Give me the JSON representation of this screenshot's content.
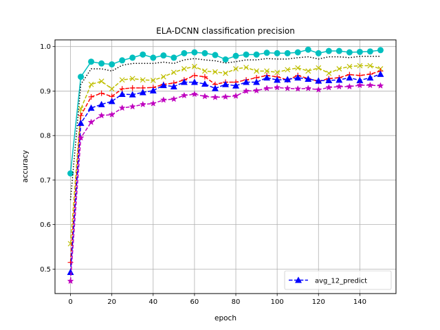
{
  "chart_data": {
    "type": "line",
    "title": "ELA-DCNN classification precision",
    "xlabel": "epoch",
    "ylabel": "accuracy",
    "xlim": [
      -7.5,
      157.5
    ],
    "ylim": [
      0.445,
      1.015
    ],
    "xticks": [
      0,
      20,
      40,
      60,
      80,
      100,
      120,
      140
    ],
    "yticks": [
      0.5,
      0.6,
      0.7,
      0.8,
      0.9,
      1.0
    ],
    "ytick_labels": [
      "0.5",
      "0.6",
      "0.7",
      "0.8",
      "0.9",
      "1.0"
    ],
    "grid": true,
    "legend_position": "lower-right",
    "x": [
      0,
      5,
      10,
      15,
      20,
      25,
      30,
      35,
      40,
      45,
      50,
      55,
      60,
      65,
      70,
      75,
      80,
      85,
      90,
      95,
      100,
      105,
      110,
      115,
      120,
      125,
      130,
      135,
      140,
      145,
      150
    ],
    "series": [
      {
        "name": "",
        "color": "#00bfbf",
        "marker": "circle",
        "dash": "none",
        "values": [
          0.715,
          0.932,
          0.966,
          0.962,
          0.96,
          0.969,
          0.975,
          0.982,
          0.975,
          0.98,
          0.975,
          0.985,
          0.987,
          0.985,
          0.981,
          0.971,
          0.979,
          0.982,
          0.982,
          0.986,
          0.985,
          0.985,
          0.987,
          0.993,
          0.985,
          0.99,
          0.99,
          0.987,
          0.988,
          0.989,
          0.992
        ]
      },
      {
        "name": "",
        "color": "#000000",
        "marker": "none",
        "dash": "dotted",
        "values": [
          0.655,
          0.915,
          0.95,
          0.95,
          0.945,
          0.958,
          0.962,
          0.962,
          0.962,
          0.965,
          0.962,
          0.97,
          0.973,
          0.97,
          0.968,
          0.963,
          0.966,
          0.97,
          0.97,
          0.973,
          0.972,
          0.972,
          0.975,
          0.977,
          0.972,
          0.977,
          0.977,
          0.975,
          0.978,
          0.978,
          0.978
        ]
      },
      {
        "name": "",
        "color": "#bfbf00",
        "marker": "x",
        "dash": "dashed",
        "values": [
          0.557,
          0.86,
          0.915,
          0.922,
          0.905,
          0.925,
          0.928,
          0.925,
          0.924,
          0.932,
          0.942,
          0.95,
          0.955,
          0.945,
          0.943,
          0.94,
          0.95,
          0.953,
          0.945,
          0.945,
          0.942,
          0.948,
          0.952,
          0.945,
          0.952,
          0.94,
          0.95,
          0.955,
          0.957,
          0.957,
          0.95
        ]
      },
      {
        "name": "",
        "color": "#ff0000",
        "marker": "plus",
        "dash": "dashed",
        "values": [
          0.515,
          0.845,
          0.887,
          0.895,
          0.888,
          0.905,
          0.907,
          0.907,
          0.908,
          0.915,
          0.918,
          0.925,
          0.935,
          0.932,
          0.915,
          0.92,
          0.92,
          0.925,
          0.93,
          0.935,
          0.932,
          0.925,
          0.935,
          0.928,
          0.922,
          0.928,
          0.93,
          0.937,
          0.935,
          0.938,
          0.945
        ]
      },
      {
        "name": "avg_12_predict",
        "color": "#0000ff",
        "marker": "triangle-up",
        "dash": "dashed",
        "values": [
          0.493,
          0.828,
          0.862,
          0.87,
          0.877,
          0.893,
          0.892,
          0.897,
          0.901,
          0.913,
          0.91,
          0.92,
          0.92,
          0.916,
          0.906,
          0.915,
          0.912,
          0.92,
          0.92,
          0.93,
          0.925,
          0.926,
          0.93,
          0.927,
          0.923,
          0.924,
          0.925,
          0.93,
          0.924,
          0.93,
          0.938
        ]
      },
      {
        "name": "",
        "color": "#bf00bf",
        "marker": "star",
        "dash": "dashed",
        "values": [
          0.473,
          0.795,
          0.83,
          0.845,
          0.847,
          0.862,
          0.865,
          0.87,
          0.872,
          0.88,
          0.882,
          0.89,
          0.893,
          0.888,
          0.886,
          0.887,
          0.889,
          0.9,
          0.901,
          0.906,
          0.908,
          0.906,
          0.905,
          0.906,
          0.903,
          0.908,
          0.91,
          0.91,
          0.913,
          0.913,
          0.912
        ]
      }
    ]
  }
}
